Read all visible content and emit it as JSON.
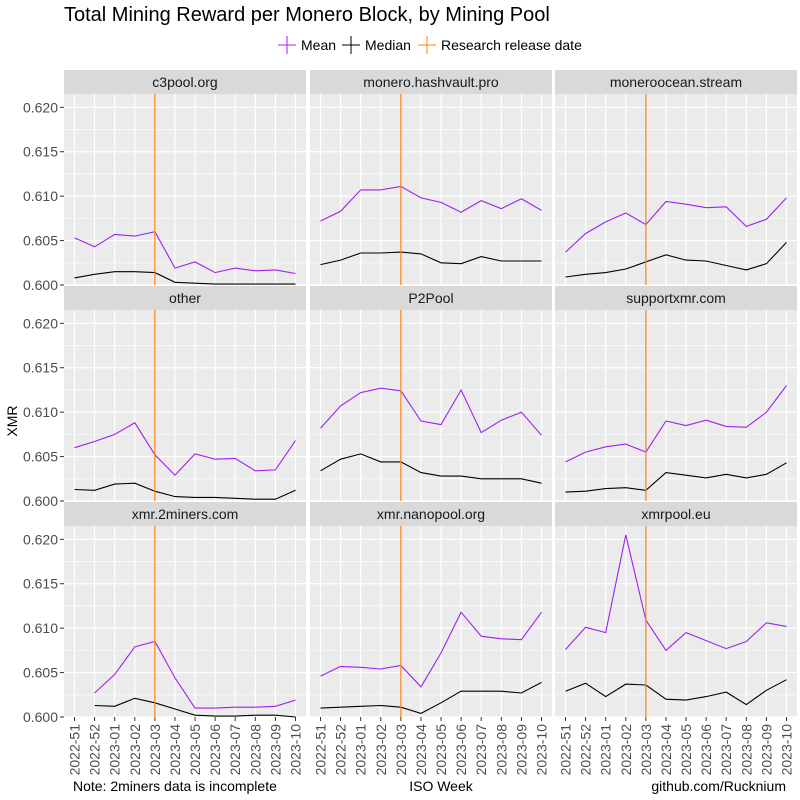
{
  "title": "Total Mining Reward per Monero Block, by Mining Pool",
  "legend": {
    "items": [
      {
        "label": "Mean",
        "color": "#a020f0"
      },
      {
        "label": "Median",
        "color": "#000000"
      },
      {
        "label": "Research release date",
        "color": "#ff7f0e"
      }
    ]
  },
  "ylabel": "XMR",
  "xlabel": "ISO Week",
  "caption_left": "Note: 2miners data is incomplete",
  "caption_right": "github.com/Rucknium",
  "chart_data": {
    "type": "line",
    "x": [
      "2022-51",
      "2022-52",
      "2023-01",
      "2023-02",
      "2023-03",
      "2023-04",
      "2023-05",
      "2023-06",
      "2023-07",
      "2023-08",
      "2023-09",
      "2023-10"
    ],
    "ylim": [
      0.6,
      0.6215
    ],
    "yticks": [
      0.6,
      0.605,
      0.61,
      0.615,
      0.62
    ],
    "ytick_labels": [
      "0.600",
      "0.605",
      "0.610",
      "0.615",
      "0.620"
    ],
    "vline": "2023-03",
    "grid": true,
    "legend_position": "top",
    "panels": [
      {
        "name": "c3pool.org",
        "mean": [
          0.6053,
          0.6043,
          0.6057,
          0.6055,
          0.606,
          0.6019,
          0.6026,
          0.6014,
          0.6019,
          0.6016,
          0.6017,
          0.6013
        ],
        "median": [
          0.6008,
          0.6012,
          0.6015,
          0.6015,
          0.6014,
          0.6003,
          0.6002,
          0.6001,
          0.6001,
          0.6001,
          0.6001,
          0.6001
        ]
      },
      {
        "name": "monero.hashvault.pro",
        "mean": [
          0.6072,
          0.6083,
          0.6107,
          0.6107,
          0.6111,
          0.6098,
          0.6093,
          0.6082,
          0.6095,
          0.6086,
          0.6097,
          0.6084
        ],
        "median": [
          0.6023,
          0.6028,
          0.6036,
          0.6036,
          0.6037,
          0.6035,
          0.6025,
          0.6024,
          0.6032,
          0.6027,
          0.6027,
          0.6027
        ]
      },
      {
        "name": "moneroocean.stream",
        "mean": [
          0.6037,
          0.6058,
          0.6071,
          0.6081,
          0.6068,
          0.6094,
          0.6091,
          0.6087,
          0.6088,
          0.6066,
          0.6074,
          0.6098
        ],
        "median": [
          0.6009,
          0.6012,
          0.6014,
          0.6018,
          0.6026,
          0.6034,
          0.6028,
          0.6027,
          0.6022,
          0.6017,
          0.6024,
          0.6048
        ]
      },
      {
        "name": "other",
        "mean": [
          0.606,
          0.6067,
          0.6075,
          0.6088,
          0.6052,
          0.6029,
          0.6053,
          0.6047,
          0.6048,
          0.6034,
          0.6035,
          0.6068
        ],
        "median": [
          0.6013,
          0.6012,
          0.6019,
          0.602,
          0.6011,
          0.6005,
          0.6004,
          0.6004,
          0.6003,
          0.6002,
          0.6002,
          0.6012
        ]
      },
      {
        "name": "P2Pool",
        "mean": [
          0.6082,
          0.6107,
          0.6122,
          0.6127,
          0.6124,
          0.609,
          0.6086,
          0.6125,
          0.6077,
          0.6091,
          0.61,
          0.6074
        ],
        "median": [
          0.6034,
          0.6047,
          0.6053,
          0.6044,
          0.6044,
          0.6032,
          0.6028,
          0.6028,
          0.6025,
          0.6025,
          0.6025,
          0.602
        ]
      },
      {
        "name": "supportxmr.com",
        "mean": [
          0.6044,
          0.6055,
          0.6061,
          0.6064,
          0.6055,
          0.609,
          0.6085,
          0.6091,
          0.6084,
          0.6083,
          0.61,
          0.613
        ],
        "median": [
          0.601,
          0.6011,
          0.6014,
          0.6015,
          0.6012,
          0.6032,
          0.6029,
          0.6026,
          0.603,
          0.6026,
          0.603,
          0.6043
        ]
      },
      {
        "name": "xmr.2miners.com",
        "mean": [
          null,
          0.6027,
          0.6048,
          0.6079,
          0.6085,
          0.6044,
          0.601,
          0.601,
          0.6011,
          0.6011,
          0.6012,
          0.6019
        ],
        "median": [
          null,
          0.6013,
          0.6012,
          0.6021,
          0.6016,
          0.6009,
          0.6002,
          0.6001,
          0.6001,
          0.6002,
          0.6002,
          0.6
        ]
      },
      {
        "name": "xmr.nanopool.org",
        "mean": [
          0.6046,
          0.6057,
          0.6056,
          0.6054,
          0.6058,
          0.6034,
          0.6072,
          0.6118,
          0.6091,
          0.6088,
          0.6087,
          0.6118
        ],
        "median": [
          0.601,
          0.6011,
          0.6012,
          0.6013,
          0.6011,
          0.6004,
          0.6016,
          0.6029,
          0.6029,
          0.6029,
          0.6027,
          0.6039
        ]
      },
      {
        "name": "xmrpool.eu",
        "mean": [
          0.6076,
          0.6101,
          0.6095,
          0.6205,
          0.6109,
          0.6075,
          0.6095,
          0.6086,
          0.6077,
          0.6085,
          0.6106,
          0.6102
        ],
        "median": [
          0.6029,
          0.6038,
          0.6023,
          0.6037,
          0.6036,
          0.602,
          0.6019,
          0.6023,
          0.6028,
          0.6014,
          0.603,
          0.6042
        ]
      }
    ]
  }
}
